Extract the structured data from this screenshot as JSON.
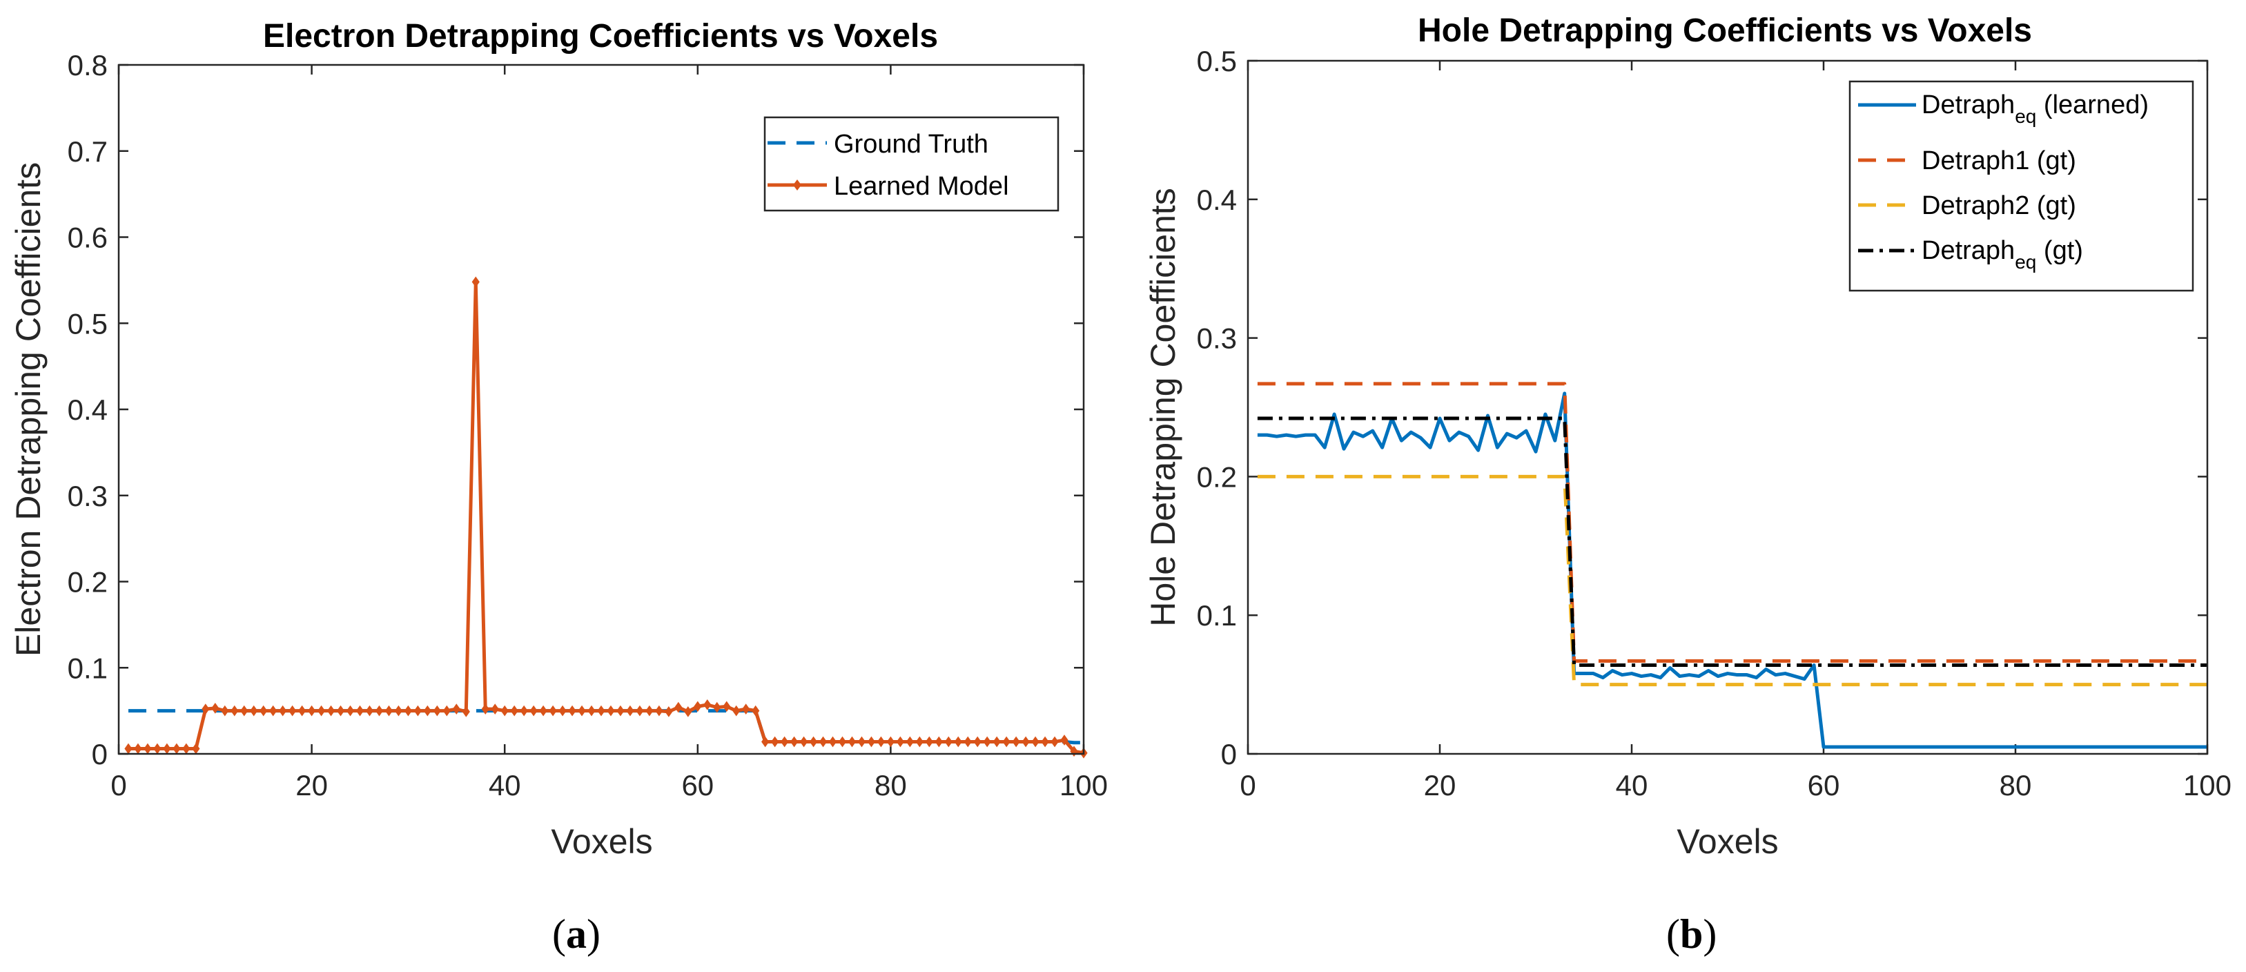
{
  "colors": {
    "blue": "#0072BD",
    "orange": "#D95319",
    "yellow": "#EDB120",
    "black": "#000000",
    "axis": "#262626"
  },
  "panels": [
    {
      "paren_open": "(",
      "letter": "a",
      "paren_close": ")"
    },
    {
      "paren_open": "(",
      "letter": "b",
      "paren_close": ")"
    }
  ],
  "chart_data": [
    {
      "type": "line",
      "title": "Electron Detrapping Coefficients vs Voxels",
      "xlabel": "Voxels",
      "ylabel": "Electron Detrapping Coefficients",
      "xlim": [
        0,
        100
      ],
      "ylim": [
        0,
        0.8
      ],
      "xticks": [
        "0",
        "20",
        "40",
        "60",
        "80",
        "100"
      ],
      "yticks": [
        "0",
        "0.1",
        "0.2",
        "0.3",
        "0.4",
        "0.5",
        "0.6",
        "0.7",
        "0.8"
      ],
      "legend_position": "top-right",
      "legend": [
        {
          "label": "Ground Truth",
          "style": "dashed",
          "color": "#0072BD",
          "marker": "none"
        },
        {
          "label": "Learned Model",
          "style": "solid",
          "color": "#D95319",
          "marker": "diamond"
        }
      ],
      "series": [
        {
          "name": "Ground Truth",
          "points": [
            [
              1,
              0.05
            ],
            [
              66,
              0.05
            ],
            [
              67,
              0.014
            ],
            [
              98,
              0.014
            ],
            [
              99,
              0.013
            ],
            [
              100,
              0.013
            ]
          ]
        },
        {
          "name": "Learned Model",
          "x": [
            1,
            2,
            3,
            4,
            5,
            6,
            7,
            8,
            9,
            10,
            11,
            12,
            13,
            14,
            15,
            16,
            17,
            18,
            19,
            20,
            21,
            22,
            23,
            24,
            25,
            26,
            27,
            28,
            29,
            30,
            31,
            32,
            33,
            34,
            35,
            36,
            37,
            38,
            39,
            40,
            41,
            42,
            43,
            44,
            45,
            46,
            47,
            48,
            49,
            50,
            51,
            52,
            53,
            54,
            55,
            56,
            57,
            58,
            59,
            60,
            61,
            62,
            63,
            64,
            65,
            66,
            67,
            68,
            69,
            70,
            71,
            72,
            73,
            74,
            75,
            76,
            77,
            78,
            79,
            80,
            81,
            82,
            83,
            84,
            85,
            86,
            87,
            88,
            89,
            90,
            91,
            92,
            93,
            94,
            95,
            96,
            97,
            98,
            99,
            100
          ],
          "values": [
            0.006,
            0.006,
            0.006,
            0.006,
            0.006,
            0.006,
            0.006,
            0.006,
            0.052,
            0.053,
            0.05,
            0.05,
            0.05,
            0.05,
            0.05,
            0.05,
            0.05,
            0.05,
            0.05,
            0.05,
            0.05,
            0.05,
            0.05,
            0.05,
            0.05,
            0.05,
            0.05,
            0.05,
            0.05,
            0.05,
            0.05,
            0.05,
            0.05,
            0.05,
            0.052,
            0.049,
            0.548,
            0.052,
            0.052,
            0.05,
            0.05,
            0.05,
            0.05,
            0.05,
            0.05,
            0.05,
            0.05,
            0.05,
            0.05,
            0.05,
            0.05,
            0.05,
            0.05,
            0.05,
            0.05,
            0.05,
            0.049,
            0.054,
            0.049,
            0.055,
            0.057,
            0.054,
            0.055,
            0.05,
            0.052,
            0.05,
            0.014,
            0.014,
            0.014,
            0.014,
            0.014,
            0.014,
            0.014,
            0.014,
            0.014,
            0.014,
            0.014,
            0.014,
            0.014,
            0.014,
            0.014,
            0.014,
            0.014,
            0.014,
            0.014,
            0.014,
            0.014,
            0.014,
            0.014,
            0.014,
            0.014,
            0.014,
            0.014,
            0.014,
            0.014,
            0.014,
            0.014,
            0.016,
            0.003,
            0.001
          ]
        }
      ]
    },
    {
      "type": "line",
      "title": "Hole Detrapping Coefficients vs Voxels",
      "xlabel": "Voxels",
      "ylabel": "Hole Detrapping Coefficients",
      "xlim": [
        0,
        100
      ],
      "ylim": [
        0,
        0.5
      ],
      "xticks": [
        "0",
        "20",
        "40",
        "60",
        "80",
        "100"
      ],
      "yticks": [
        "0",
        "0.1",
        "0.2",
        "0.3",
        "0.4",
        "0.5"
      ],
      "legend_position": "top-right",
      "legend": [
        {
          "label": "Detraph",
          "sub": "eq",
          "suffix": " (learned)",
          "style": "solid",
          "color": "#0072BD"
        },
        {
          "label": "Detraph1 (gt)",
          "sub": "",
          "suffix": "",
          "style": "dashed",
          "color": "#D95319"
        },
        {
          "label": "Detraph2 (gt)",
          "sub": "",
          "suffix": "",
          "style": "dashed",
          "color": "#EDB120"
        },
        {
          "label": "Detraph",
          "sub": "eq",
          "suffix": " (gt)",
          "style": "dashdot",
          "color": "#000000"
        }
      ],
      "series": [
        {
          "name": "Detraph_eq (learned)",
          "x": [
            1,
            2,
            3,
            4,
            5,
            6,
            7,
            8,
            9,
            10,
            11,
            12,
            13,
            14,
            15,
            16,
            17,
            18,
            19,
            20,
            21,
            22,
            23,
            24,
            25,
            26,
            27,
            28,
            29,
            30,
            31,
            32,
            33,
            34,
            35,
            36,
            37,
            38,
            39,
            40,
            41,
            42,
            43,
            44,
            45,
            46,
            47,
            48,
            49,
            50,
            51,
            52,
            53,
            54,
            55,
            56,
            57,
            58,
            59,
            60,
            61,
            62,
            63,
            64,
            65,
            66,
            67,
            68,
            69,
            70,
            71,
            72,
            73,
            74,
            75,
            76,
            77,
            78,
            79,
            80,
            81,
            82,
            83,
            84,
            85,
            86,
            87,
            88,
            89,
            90,
            91,
            92,
            93,
            94,
            95,
            96,
            97,
            98,
            99,
            100
          ],
          "values": [
            0.23,
            0.23,
            0.229,
            0.23,
            0.229,
            0.23,
            0.23,
            0.221,
            0.245,
            0.22,
            0.232,
            0.229,
            0.233,
            0.221,
            0.242,
            0.226,
            0.232,
            0.228,
            0.221,
            0.242,
            0.226,
            0.232,
            0.229,
            0.219,
            0.244,
            0.221,
            0.231,
            0.228,
            0.233,
            0.218,
            0.245,
            0.226,
            0.26,
            0.058,
            0.058,
            0.058,
            0.055,
            0.06,
            0.057,
            0.058,
            0.056,
            0.057,
            0.055,
            0.062,
            0.056,
            0.057,
            0.056,
            0.06,
            0.056,
            0.058,
            0.057,
            0.057,
            0.055,
            0.061,
            0.057,
            0.058,
            0.056,
            0.054,
            0.064,
            0.005,
            0.005,
            0.005,
            0.005,
            0.005,
            0.005,
            0.005,
            0.005,
            0.005,
            0.005,
            0.005,
            0.005,
            0.005,
            0.005,
            0.005,
            0.005,
            0.005,
            0.005,
            0.005,
            0.005,
            0.005,
            0.005,
            0.005,
            0.005,
            0.005,
            0.005,
            0.005,
            0.005,
            0.005,
            0.005,
            0.005,
            0.005,
            0.005,
            0.005,
            0.005,
            0.005,
            0.005,
            0.005,
            0.005,
            0.005,
            0.005
          ]
        },
        {
          "name": "Detraph1 (gt)",
          "points": [
            [
              1,
              0.267
            ],
            [
              33,
              0.267
            ],
            [
              34,
              0.067
            ],
            [
              100,
              0.067
            ]
          ]
        },
        {
          "name": "Detraph2 (gt)",
          "points": [
            [
              1,
              0.2
            ],
            [
              33,
              0.2
            ],
            [
              34,
              0.05
            ],
            [
              100,
              0.05
            ]
          ]
        },
        {
          "name": "Detraph_eq (gt)",
          "points": [
            [
              1,
              0.242
            ],
            [
              33,
              0.242
            ],
            [
              34,
              0.064
            ],
            [
              100,
              0.064
            ]
          ]
        }
      ]
    }
  ]
}
